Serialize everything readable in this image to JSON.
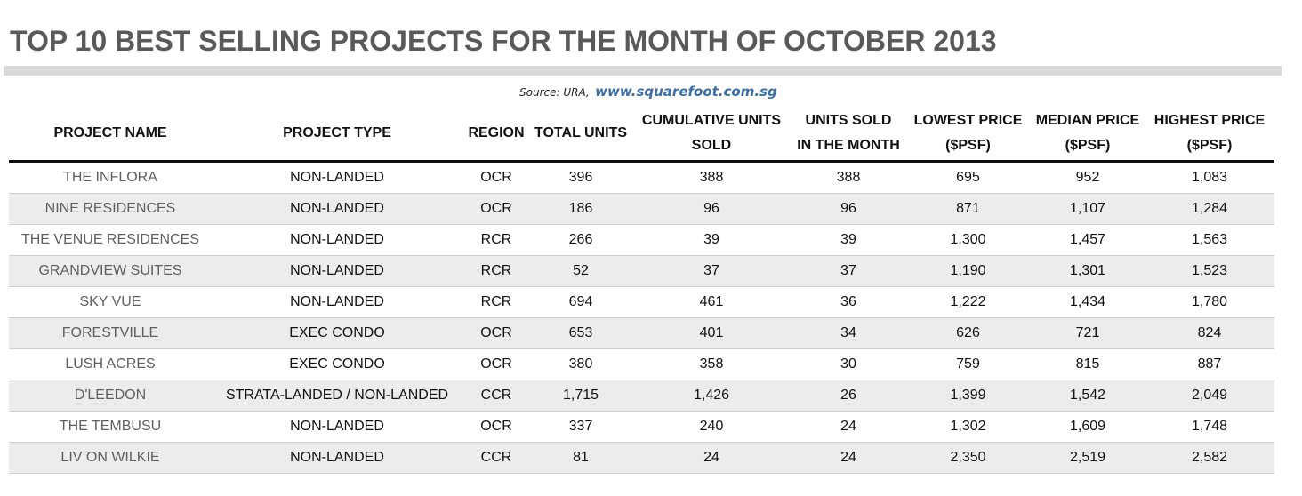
{
  "title": "TOP 10 BEST SELLING PROJECTS FOR THE MONTH OF OCTOBER 2013",
  "source": {
    "label": "Source: URA,",
    "link": "www.squarefoot.com.sg",
    "link_color": "#3a6ea5"
  },
  "colors": {
    "title": "#595959",
    "title_bar": "#d9d9d9",
    "alt_row": "#ececec",
    "project_name": "#5f5f5f"
  },
  "headers": {
    "project_name": "PROJECT NAME",
    "project_type": "PROJECT TYPE",
    "region": "REGION",
    "total_units": "TOTAL UNITS",
    "cumulative_1": "CUMULATIVE UNITS",
    "cumulative_2": "SOLD",
    "sold_month_1": "UNITS SOLD",
    "sold_month_2": "IN THE MONTH",
    "lowest_1": "LOWEST PRICE",
    "lowest_2": "($PSF)",
    "median_1": "MEDIAN PRICE",
    "median_2": "($PSF)",
    "highest_1": "HIGHEST PRICE",
    "highest_2": "($PSF)"
  },
  "rows": [
    {
      "name": "THE INFLORA",
      "type": "NON-LANDED",
      "region": "OCR",
      "total": "396",
      "cumulative": "388",
      "sold_month": "388",
      "lowest": "695",
      "median": "952",
      "highest": "1,083"
    },
    {
      "name": "NINE RESIDENCES",
      "type": "NON-LANDED",
      "region": "OCR",
      "total": "186",
      "cumulative": "96",
      "sold_month": "96",
      "lowest": "871",
      "median": "1,107",
      "highest": "1,284"
    },
    {
      "name": "THE VENUE RESIDENCES",
      "type": "NON-LANDED",
      "region": "RCR",
      "total": "266",
      "cumulative": "39",
      "sold_month": "39",
      "lowest": "1,300",
      "median": "1,457",
      "highest": "1,563"
    },
    {
      "name": "GRANDVIEW SUITES",
      "type": "NON-LANDED",
      "region": "RCR",
      "total": "52",
      "cumulative": "37",
      "sold_month": "37",
      "lowest": "1,190",
      "median": "1,301",
      "highest": "1,523"
    },
    {
      "name": "SKY VUE",
      "type": "NON-LANDED",
      "region": "RCR",
      "total": "694",
      "cumulative": "461",
      "sold_month": "36",
      "lowest": "1,222",
      "median": "1,434",
      "highest": "1,780"
    },
    {
      "name": "FORESTVILLE",
      "type": "EXEC CONDO",
      "region": "OCR",
      "total": "653",
      "cumulative": "401",
      "sold_month": "34",
      "lowest": "626",
      "median": "721",
      "highest": "824"
    },
    {
      "name": "LUSH ACRES",
      "type": "EXEC CONDO",
      "region": "OCR",
      "total": "380",
      "cumulative": "358",
      "sold_month": "30",
      "lowest": "759",
      "median": "815",
      "highest": "887"
    },
    {
      "name": "D'LEEDON",
      "type": "STRATA-LANDED / NON-LANDED",
      "region": "CCR",
      "total": "1,715",
      "cumulative": "1,426",
      "sold_month": "26",
      "lowest": "1,399",
      "median": "1,542",
      "highest": "2,049"
    },
    {
      "name": "THE TEMBUSU",
      "type": "NON-LANDED",
      "region": "OCR",
      "total": "337",
      "cumulative": "240",
      "sold_month": "24",
      "lowest": "1,302",
      "median": "1,609",
      "highest": "1,748"
    },
    {
      "name": "LIV ON WILKIE",
      "type": "NON-LANDED",
      "region": "CCR",
      "total": "81",
      "cumulative": "24",
      "sold_month": "24",
      "lowest": "2,350",
      "median": "2,519",
      "highest": "2,582"
    }
  ]
}
